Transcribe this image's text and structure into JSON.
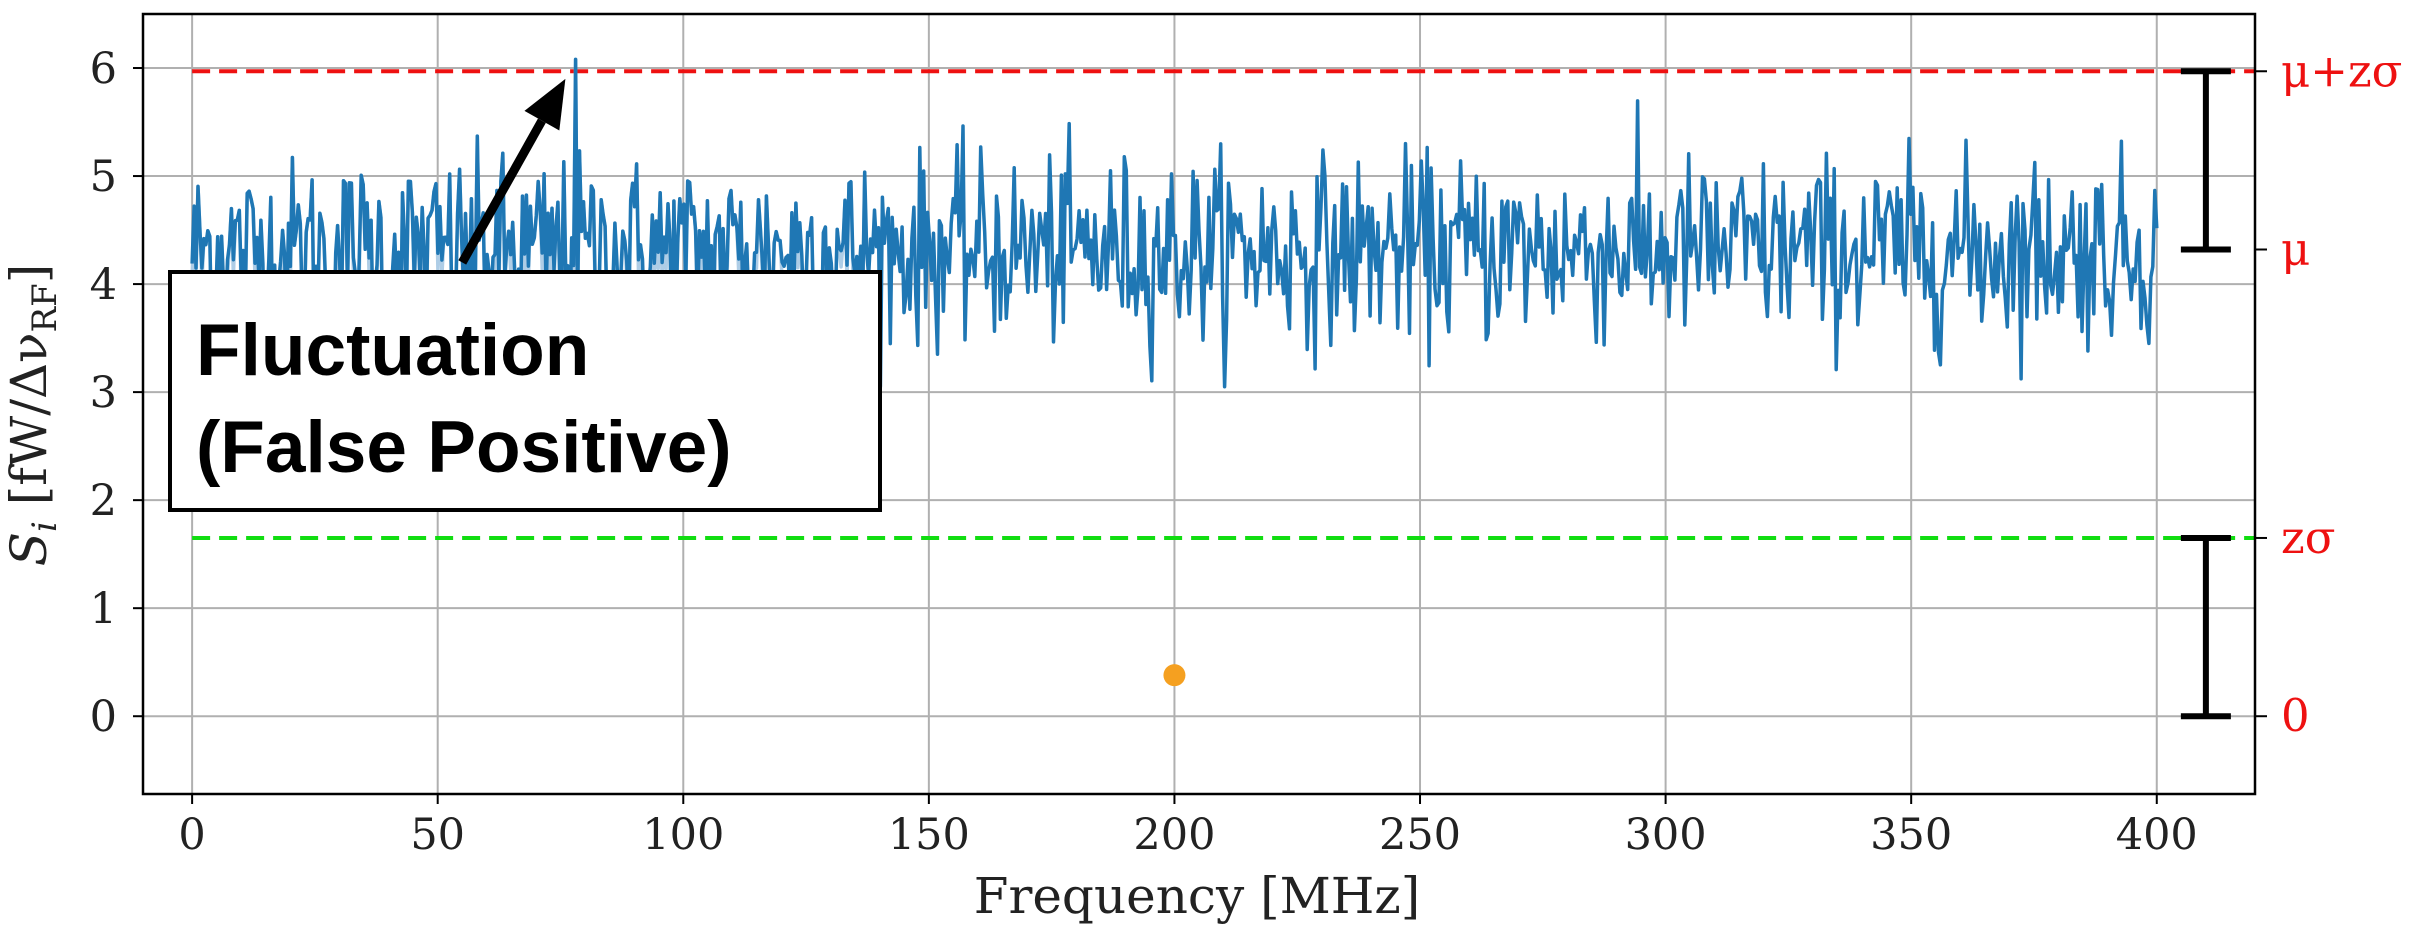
{
  "chart_data": {
    "type": "line",
    "xlabel": "Frequency [MHz]",
    "ylabel_parts": {
      "main": "S",
      "sub": "i",
      "rest": " [fW/Δν",
      "rf": "RF",
      "close": "]"
    },
    "xlim": [
      -10,
      420
    ],
    "ylim": [
      -0.72,
      6.5
    ],
    "xticks": [
      0,
      50,
      100,
      150,
      200,
      250,
      300,
      350,
      400
    ],
    "yticks": [
      0,
      1,
      2,
      3,
      4,
      5,
      6
    ],
    "grid": true,
    "mu": 4.32,
    "z_sigma": 1.65,
    "mu_plus_z_sigma": 5.97,
    "signal_series": {
      "x_start": 0,
      "x_end": 400,
      "n_points": 1000,
      "mean": 4.32,
      "std": 0.42,
      "highlight_peak": {
        "x": 78,
        "y": 6.08
      },
      "faded_range": [
        0,
        137
      ]
    },
    "marker": {
      "x": 200,
      "y": 0.38
    },
    "hlines": [
      {
        "name": "mu+z-sigma-line",
        "y": 5.97,
        "color": "#ee1111"
      },
      {
        "name": "z-sigma-line",
        "y": 1.65,
        "color": "#11dd11"
      }
    ],
    "right_labels": [
      {
        "key": "mu_plus_z_sigma",
        "text": "μ+zσ",
        "y": 5.97
      },
      {
        "key": "mu",
        "text": "μ",
        "y": 4.32
      },
      {
        "key": "z_sigma",
        "text": "zσ",
        "y": 1.65
      },
      {
        "key": "zero",
        "text": "0",
        "y": 0
      }
    ],
    "bracket_x": 410,
    "annotation": {
      "line1": "Fluctuation",
      "line2": "(False Positive)",
      "arrow_from": {
        "x": 55,
        "y": 4.2
      },
      "arrow_to": {
        "x": 76,
        "y": 5.9
      }
    }
  },
  "colors": {
    "signal": "#1f77b4",
    "signal_faded": "#aecde6",
    "marker": "#f5a020",
    "mu_line": "#ee1111",
    "zsigma_line": "#11dd11",
    "right_labels": "#ee1111"
  }
}
